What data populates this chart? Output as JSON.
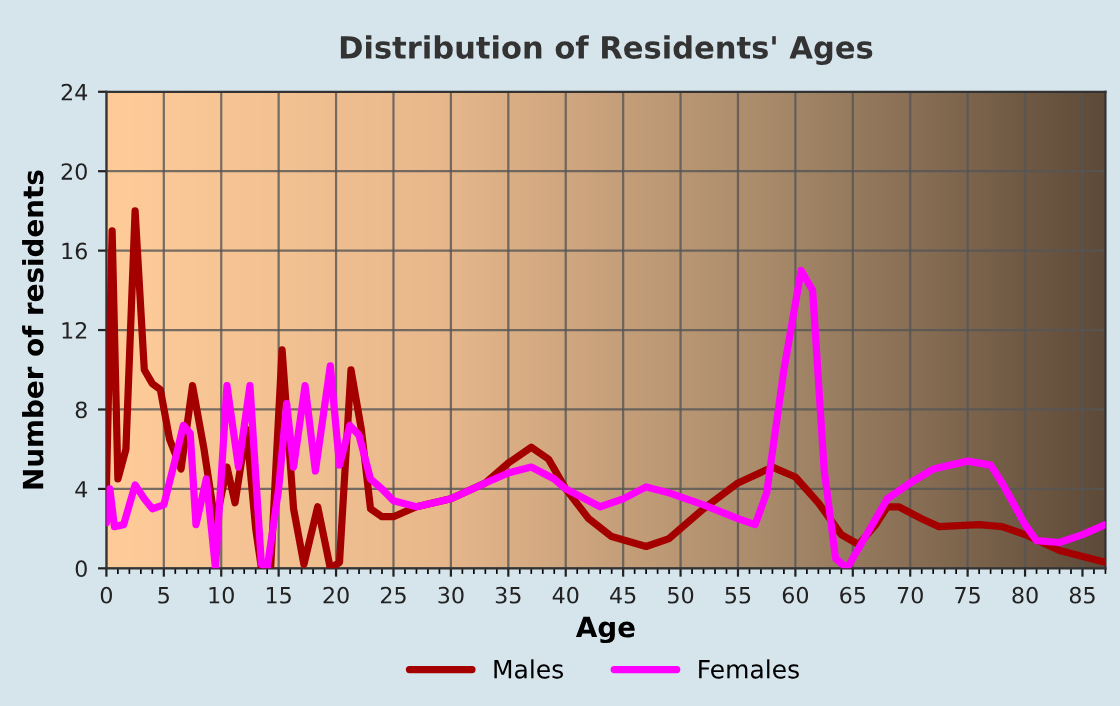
{
  "chart_data": {
    "type": "line",
    "title": "Distribution of Residents' Ages",
    "xlabel": "Age",
    "ylabel": "Number of residents",
    "xlim": [
      0,
      87
    ],
    "xticks": [
      0,
      5,
      10,
      15,
      20,
      25,
      30,
      35,
      40,
      45,
      50,
      55,
      60,
      65,
      70,
      75,
      80,
      85
    ],
    "ylim": [
      0,
      24
    ],
    "yticks": [
      0,
      4,
      8,
      12,
      16,
      20,
      24
    ],
    "grid": true,
    "legend": "bottom",
    "series": [
      {
        "name": "Males",
        "color": "#a50000",
        "x": [
          0,
          0.5,
          1,
          1.7,
          2.5,
          3.3,
          4,
          4.7,
          5.5,
          6.5,
          7.5,
          8.5,
          9.5,
          10.5,
          11.2,
          12.2,
          13,
          13.5,
          14.3,
          15.3,
          16.3,
          17.2,
          18.4,
          19.5,
          20.3,
          21.3,
          22.2,
          23,
          24,
          25,
          27,
          30,
          33,
          35,
          37,
          38.5,
          40,
          42,
          44,
          47,
          49,
          52,
          55,
          58,
          60,
          62,
          64,
          65.5,
          67,
          68,
          69,
          71,
          72.5,
          76,
          78,
          80,
          83,
          87
        ],
        "values": [
          4,
          17,
          4.5,
          6,
          18,
          10,
          9.3,
          9,
          6.5,
          5,
          9.2,
          6,
          2.2,
          5.1,
          3.3,
          7,
          2,
          0,
          0,
          11,
          3,
          0.2,
          3.1,
          0,
          0.3,
          10,
          7,
          3,
          2.6,
          2.6,
          3.1,
          3.5,
          4.3,
          5.3,
          6.1,
          5.5,
          4,
          2.5,
          1.6,
          1.1,
          1.5,
          3,
          4.3,
          5.1,
          4.6,
          3.3,
          1.7,
          1.2,
          2.2,
          3.1,
          3.1,
          2.5,
          2.1,
          2.2,
          2.1,
          1.7,
          0.9,
          0.3
        ]
      },
      {
        "name": "Females",
        "color": "#ff00ff",
        "x": [
          0,
          0.3,
          0.7,
          1.5,
          2.5,
          3.3,
          4,
          5,
          6,
          6.7,
          7.3,
          7.8,
          8.7,
          9.5,
          10.5,
          11.5,
          12.5,
          13.5,
          14,
          15,
          15.7,
          16.3,
          17.3,
          18.2,
          19.5,
          20.3,
          21.2,
          22,
          23,
          24,
          25,
          27,
          30,
          33,
          35,
          37,
          39,
          40,
          43,
          45,
          47,
          49,
          52,
          55,
          56.5,
          57.5,
          59,
          60.5,
          61.5,
          62.5,
          63.5,
          64.5,
          66,
          68,
          70,
          72,
          75,
          77,
          78,
          80,
          81,
          83,
          85,
          87
        ],
        "values": [
          2.3,
          4,
          2.1,
          2.2,
          4.2,
          3.5,
          3,
          3.2,
          5.5,
          7.2,
          6.8,
          2.2,
          4.5,
          0,
          9.2,
          5.1,
          9.2,
          0.2,
          0,
          4,
          8.3,
          5.1,
          9.2,
          4.9,
          10.2,
          5.2,
          7.2,
          6.7,
          4.5,
          4,
          3.4,
          3.1,
          3.5,
          4.3,
          4.8,
          5.1,
          4.5,
          4,
          3.1,
          3.5,
          4.1,
          3.8,
          3.2,
          2.5,
          2.2,
          3.8,
          10,
          15,
          14,
          5,
          0.5,
          0,
          1.5,
          3.5,
          4.3,
          5,
          5.4,
          5.2,
          4.3,
          2.2,
          1.4,
          1.3,
          1.7,
          2.2
        ]
      }
    ]
  }
}
